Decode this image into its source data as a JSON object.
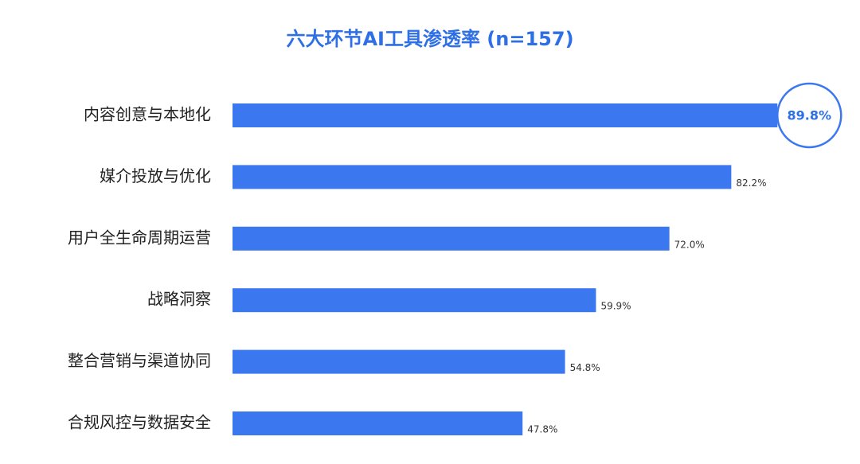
{
  "chart_data": {
    "type": "bar",
    "orientation": "horizontal",
    "title": "六大环节AI工具渗透率 (n=157)",
    "categories": [
      "内容创意与本地化",
      "媒介投放与优化",
      "用户全生命周期运营",
      "战略洞察",
      "整合营销与渠道协同",
      "合规风控与数据安全"
    ],
    "values": [
      89.8,
      82.2,
      72.0,
      59.9,
      54.8,
      47.8
    ],
    "value_labels": [
      "89.8%",
      "82.2%",
      "72.0%",
      "59.9%",
      "54.8%",
      "47.8%"
    ],
    "color": "#3b78f0",
    "xlim": [
      0,
      100
    ]
  }
}
